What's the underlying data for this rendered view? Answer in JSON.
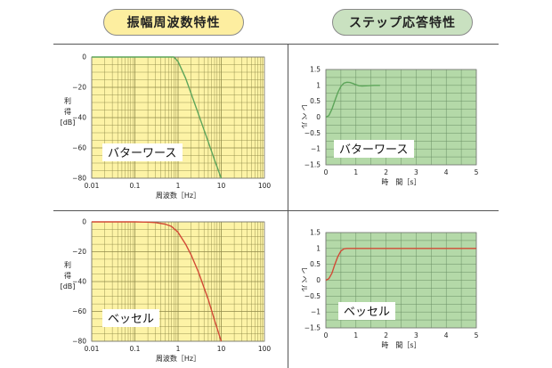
{
  "headers": {
    "left": "振幅周波数特性",
    "right": "ステップ応答特性"
  },
  "colors": {
    "freq_bg": "#fdf3a6",
    "step_bg": "#b4d9a8",
    "butterworth_curve": "#5da55a",
    "bessel_curve": "#d24a36",
    "grid": "#8f8a4a",
    "step_grid": "#6a8f64"
  },
  "chart_data": [
    {
      "type": "line",
      "name": "freq-butterworth",
      "label": "バターワース",
      "xlabel": "周波数［Hz］",
      "ylabel": [
        "利",
        "得",
        "[dB]"
      ],
      "xscale": "log",
      "xlim": [
        0.01,
        100
      ],
      "ylim": [
        -80,
        0
      ],
      "xticks": [
        "0.01",
        "0.1",
        "1",
        "10",
        "100"
      ],
      "yticks": [
        "0",
        "−20",
        "−40",
        "−60",
        "−80"
      ],
      "x": [
        0.01,
        0.1,
        0.5,
        0.8,
        1,
        1.5,
        2,
        3,
        5,
        7,
        10
      ],
      "y": [
        0,
        0,
        0,
        0,
        -3,
        -14,
        -24,
        -38,
        -56,
        -68,
        -80
      ]
    },
    {
      "type": "line",
      "name": "step-butterworth",
      "label": "バターワース",
      "xlabel": "時　間［s］",
      "ylabel": "レベル",
      "xlim": [
        0,
        5
      ],
      "ylim": [
        -1.5,
        1.5
      ],
      "xticks": [
        "0",
        "1",
        "2",
        "3",
        "4",
        "5"
      ],
      "yticks": [
        "1.5",
        "1",
        "0.5",
        "0",
        "−0.5",
        "−1",
        "−1.5"
      ],
      "x": [
        0,
        0.1,
        0.2,
        0.3,
        0.4,
        0.5,
        0.6,
        0.7,
        0.8,
        0.9,
        1.0,
        1.1,
        1.2,
        1.4,
        1.6,
        1.8
      ],
      "y": [
        0,
        0.05,
        0.25,
        0.52,
        0.78,
        0.97,
        1.07,
        1.1,
        1.09,
        1.06,
        1.02,
        0.99,
        0.98,
        0.99,
        1.0,
        1.0
      ]
    },
    {
      "type": "line",
      "name": "freq-bessel",
      "label": "ベッセル",
      "xlabel": "周波数［Hz］",
      "ylabel": [
        "利",
        "得",
        "[dB]"
      ],
      "xscale": "log",
      "xlim": [
        0.01,
        100
      ],
      "ylim": [
        -80,
        0
      ],
      "xticks": [
        "0.01",
        "0.1",
        "1",
        "10",
        "100"
      ],
      "yticks": [
        "0",
        "−20",
        "−40",
        "−60",
        "−80"
      ],
      "x": [
        0.01,
        0.1,
        0.2,
        0.3,
        0.5,
        0.7,
        1,
        1.5,
        2,
        3,
        5,
        7,
        10
      ],
      "y": [
        0,
        0,
        -0.2,
        -0.5,
        -1.5,
        -3,
        -7,
        -15,
        -22,
        -34,
        -52,
        -66,
        -80
      ]
    },
    {
      "type": "line",
      "name": "step-bessel",
      "label": "ベッセル",
      "xlabel": "時　間［s］",
      "ylabel": "レベル",
      "xlim": [
        0,
        5
      ],
      "ylim": [
        -1.5,
        1.5
      ],
      "xticks": [
        "0",
        "1",
        "2",
        "3",
        "4",
        "5"
      ],
      "yticks": [
        "1.5",
        "1",
        "0.5",
        "0",
        "−0.5",
        "−1",
        "−1.5"
      ],
      "x": [
        0,
        0.1,
        0.2,
        0.3,
        0.4,
        0.5,
        0.6,
        0.7,
        0.8,
        1.0,
        1.5,
        2,
        3,
        4,
        5
      ],
      "y": [
        0,
        0.05,
        0.22,
        0.5,
        0.75,
        0.92,
        0.99,
        1.0,
        1.0,
        1.0,
        1.0,
        1.0,
        1.0,
        1.0,
        1.0
      ]
    }
  ]
}
